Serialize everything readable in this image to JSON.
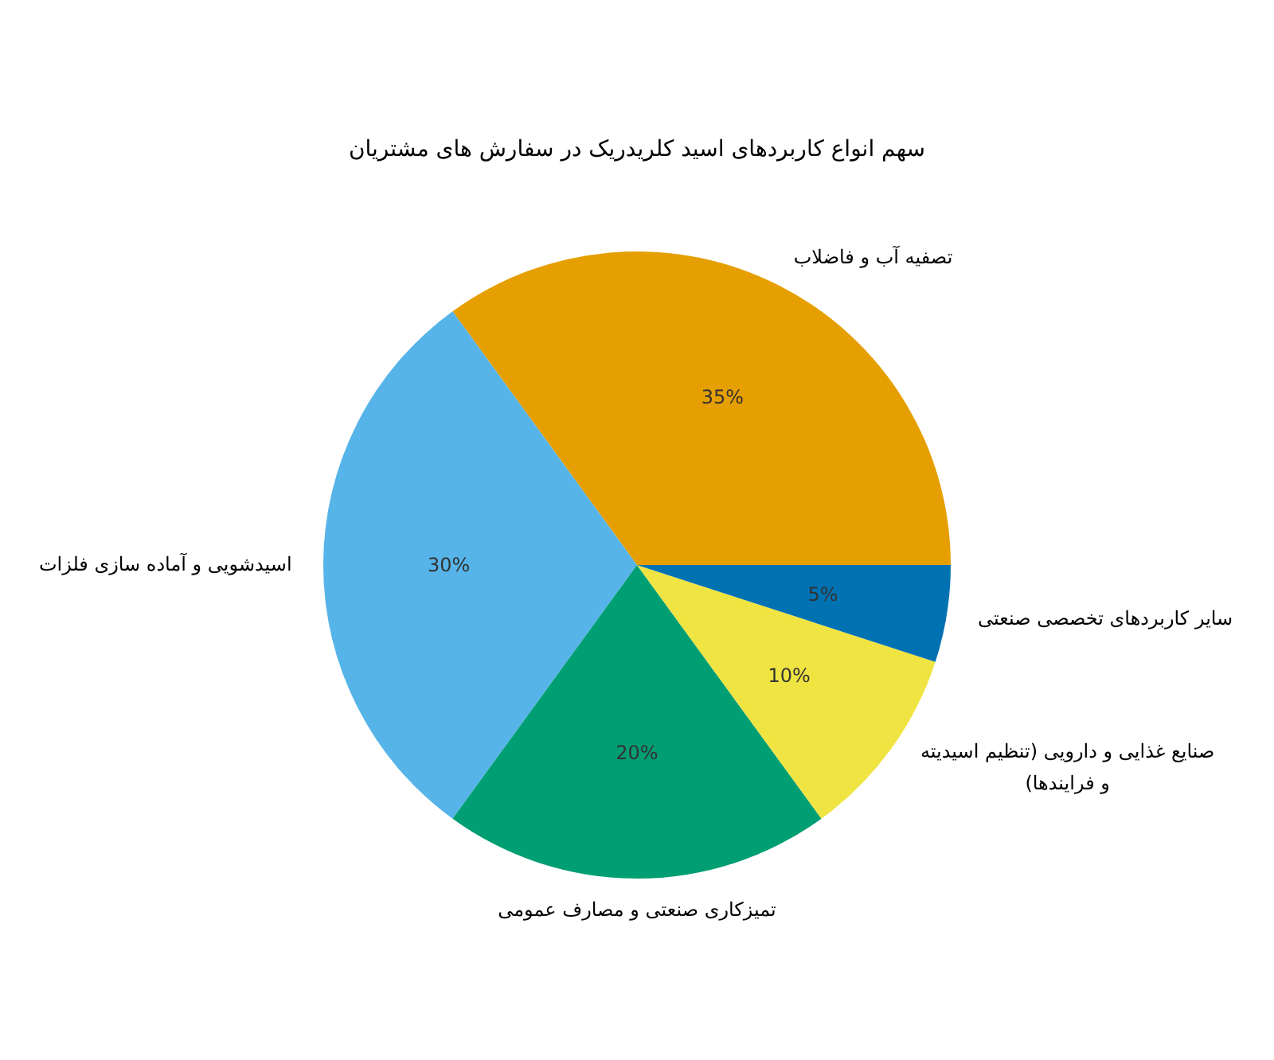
{
  "chart_data": {
    "type": "pie",
    "title": "سهم انواع کاربردهای اسید کلریدریک در سفارش های مشتریان",
    "categories": [
      "تصفیه آب و فاضلاب",
      "اسیدشویی و آماده سازی فلزات",
      "تمیزکاری صنعتی و مصارف عمومی",
      "صنایع غذایی و دارویی (تنظیم اسیدیته و فرایندها)",
      "سایر کاربردهای تخصصی صنعتی"
    ],
    "values": [
      35,
      30,
      20,
      10,
      5
    ],
    "colors": [
      "#e69f00",
      "#56b4e9",
      "#009e73",
      "#f0e442",
      "#0072b2"
    ],
    "value_labels": [
      "35%",
      "30%",
      "20%",
      "10%",
      "5%"
    ]
  }
}
